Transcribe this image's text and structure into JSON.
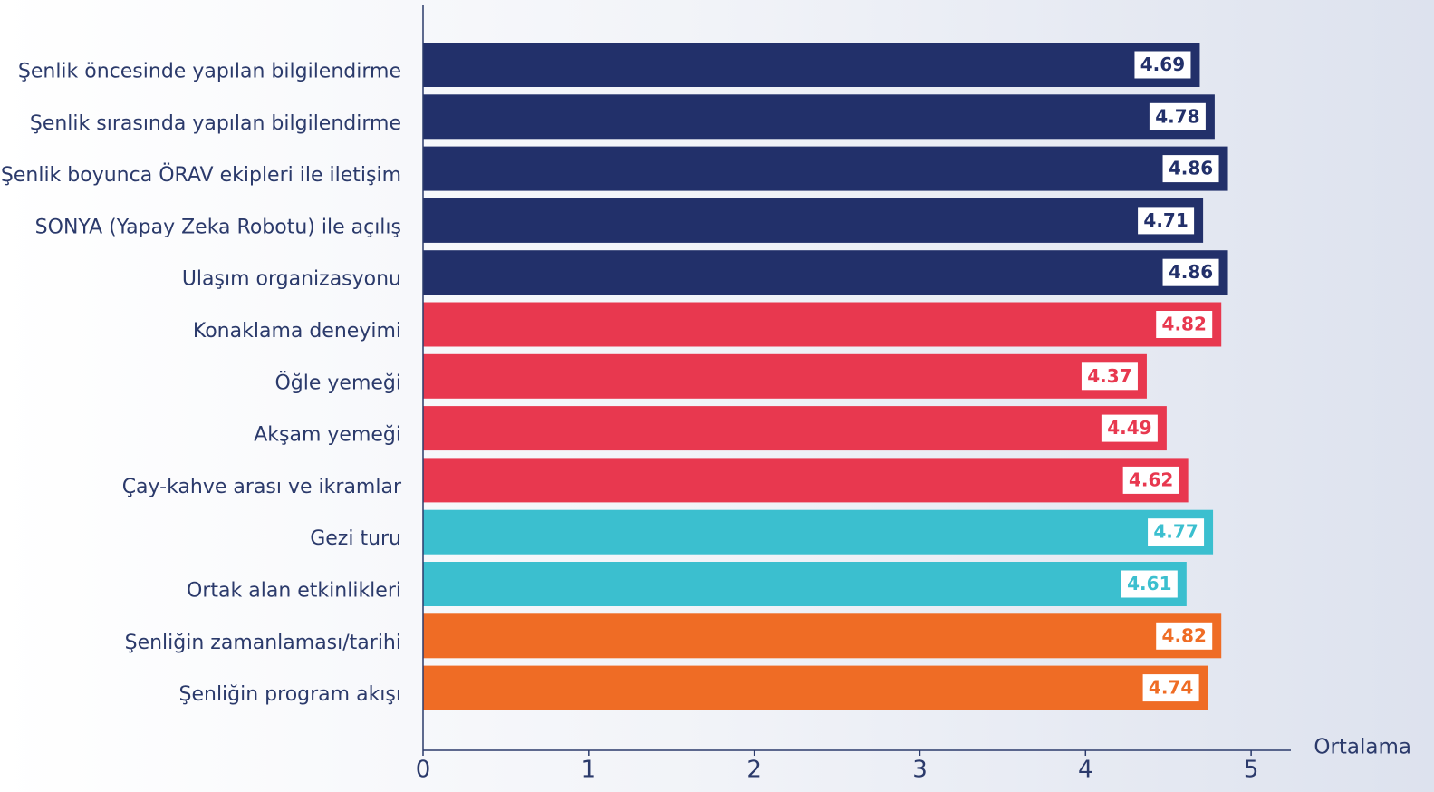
{
  "chart_data": {
    "type": "hbar",
    "categories": [
      "Şenlik öncesinde yapılan bilgilendirme",
      "Şenlik sırasında yapılan bilgilendirme",
      "Şenlik boyunca ÖRAV ekipleri ile iletişim",
      "SONYA (Yapay Zeka Robotu) ile açılış",
      "Ulaşım organizasyonu",
      "Konaklama deneyimi",
      "Öğle yemeği",
      "Akşam yemeği",
      "Çay-kahve arası ve ikramlar",
      "Gezi turu",
      "Ortak alan etkinlikleri",
      "Şenliğin zamanlaması/tarihi",
      "Şenliğin program akışı"
    ],
    "values": [
      4.69,
      4.78,
      4.86,
      4.71,
      4.86,
      4.82,
      4.37,
      4.49,
      4.62,
      4.77,
      4.61,
      4.82,
      4.74
    ],
    "colors": [
      "#22306a",
      "#22306a",
      "#22306a",
      "#22306a",
      "#22306a",
      "#e8384f",
      "#e8384f",
      "#e8384f",
      "#e8384f",
      "#3bbfcf",
      "#3bbfcf",
      "#ef6c25",
      "#ef6c25"
    ],
    "x_label": "Ortalama",
    "xlim": [
      0,
      5.24
    ],
    "xticks": [
      0,
      1,
      2,
      3,
      4,
      5
    ]
  }
}
